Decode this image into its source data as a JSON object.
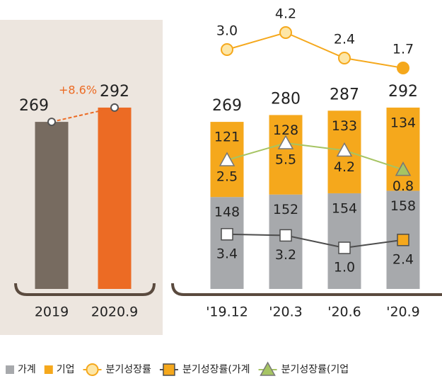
{
  "chart_data": [
    {
      "type": "bar",
      "categories": [
        "2019",
        "2020.9"
      ],
      "values": [
        269,
        292
      ],
      "colors": [
        "#776b60",
        "#ec6b24"
      ],
      "annotation": "+8.6%",
      "annotation_color": "#ec6b24"
    },
    {
      "type": "stacked_bar_line",
      "categories": [
        "'19.12",
        "'20.3",
        "'20.6",
        "'20.9"
      ],
      "total_labels": [
        269,
        280,
        287,
        292
      ],
      "series": [
        {
          "name": "가계",
          "color": "#a7a9ac",
          "values": [
            148,
            152,
            154,
            158
          ]
        },
        {
          "name": "기업",
          "color": "#f5a81c",
          "values": [
            121,
            128,
            133,
            134
          ]
        },
        {
          "name": "분기성장률",
          "type": "line",
          "marker": "circle",
          "color": "#f5a81c",
          "values": [
            3.0,
            4.2,
            2.4,
            1.7
          ],
          "value_labels": [
            "3.0",
            "4.2",
            "2.4",
            "1.7"
          ]
        },
        {
          "name": "분기성장률(가계",
          "type": "line",
          "marker": "square",
          "color": "#4d4d4d",
          "values": [
            3.4,
            3.2,
            1.0,
            2.4
          ],
          "value_labels": [
            "3.4",
            "3.2",
            "1.0",
            "2.4"
          ]
        },
        {
          "name": "분기성장률(기업",
          "type": "line",
          "marker": "triangle",
          "color": "#a6c463",
          "values": [
            2.5,
            5.5,
            4.2,
            0.8
          ],
          "value_labels": [
            "2.5",
            "5.5",
            "4.2",
            "0.8"
          ]
        }
      ]
    }
  ]
}
